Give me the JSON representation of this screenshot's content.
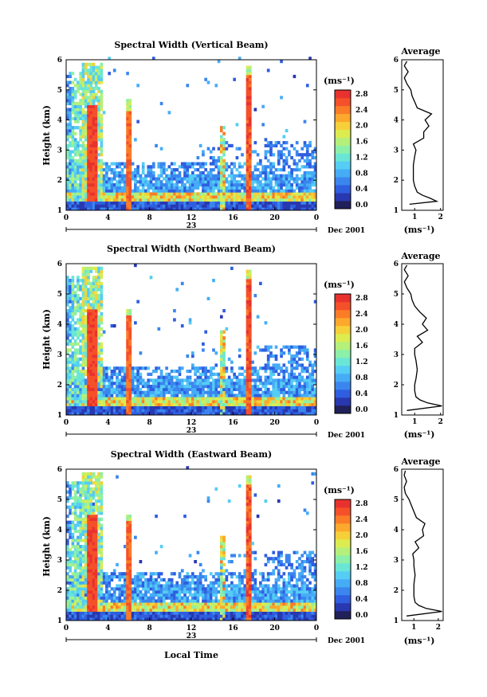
{
  "figure": {
    "colorbar_unit": "(ms⁻¹)",
    "colorbar_ticks": [
      "0.0",
      "0.4",
      "0.8",
      "1.2",
      "1.6",
      "2.0",
      "2.4",
      "2.8"
    ],
    "colorbar_levels": [
      0,
      0.2,
      0.4,
      0.6,
      0.8,
      1.0,
      1.2,
      1.4,
      1.6,
      1.8,
      2.0,
      2.2,
      2.4,
      2.6,
      2.8
    ],
    "colorbar_colors": [
      "#20205a",
      "#2838b0",
      "#2f5ee0",
      "#3a86ee",
      "#46acf6",
      "#55cdf4",
      "#6ae6d6",
      "#8cf0a8",
      "#b4f07a",
      "#dcec50",
      "#f6d038",
      "#fca82c",
      "#fb7c26",
      "#f4502a",
      "#e8322e"
    ],
    "time_ticks": [
      "0",
      "4",
      "8",
      "12",
      "16",
      "20",
      "0"
    ],
    "height_ticks": [
      "1",
      "2",
      "3",
      "4",
      "5",
      "6"
    ],
    "date_label": "23",
    "date_suffix": "Dec 2001",
    "average_title": "Average",
    "average_unit": "(ms⁻¹)",
    "ylabel": "Height (km)",
    "xlabel": "Local Time"
  },
  "chart_data": [
    {
      "type": "heatmap",
      "title": "Spectral Width (Vertical Beam)",
      "xlabel": "",
      "ylabel": "Height (km)",
      "xlim": [
        0,
        24
      ],
      "ylim": [
        1,
        6
      ],
      "zlabel": "(ms⁻¹)",
      "zlim": [
        0,
        2.9
      ],
      "profile": {
        "title": "Average",
        "xlabel": "(ms⁻¹)",
        "xticks": [
          1,
          2
        ],
        "xlim": [
          0.5,
          2.1
        ],
        "heights": [
          1.2,
          1.3,
          1.4,
          1.5,
          1.6,
          1.8,
          2.0,
          2.2,
          2.5,
          2.8,
          3.0,
          3.2,
          3.4,
          3.6,
          3.8,
          4.0,
          4.2,
          4.4,
          4.6,
          4.8,
          5.0,
          5.2,
          5.4,
          5.6,
          5.8,
          5.95
        ],
        "values": [
          0.8,
          1.85,
          1.6,
          1.3,
          1.1,
          1.0,
          0.95,
          0.95,
          0.95,
          1.0,
          1.05,
          0.95,
          1.35,
          1.35,
          1.55,
          1.4,
          1.65,
          1.1,
          1.0,
          0.9,
          0.85,
          0.7,
          0.6,
          0.75,
          0.6,
          0.7
        ]
      }
    },
    {
      "type": "heatmap",
      "title": "Spectral Width (Northward Beam)",
      "xlabel": "",
      "ylabel": "Height (km)",
      "xlim": [
        0,
        24
      ],
      "ylim": [
        1,
        6
      ],
      "zlabel": "(ms⁻¹)",
      "zlim": [
        0,
        2.9
      ],
      "profile": {
        "title": "Average",
        "xlabel": "(ms⁻¹)",
        "xticks": [
          1,
          2
        ],
        "xlim": [
          0.5,
          2.1
        ],
        "heights": [
          1.15,
          1.3,
          1.4,
          1.5,
          1.6,
          1.8,
          2.0,
          2.2,
          2.5,
          2.8,
          3.0,
          3.2,
          3.4,
          3.6,
          3.8,
          4.0,
          4.2,
          4.4,
          4.6,
          4.8,
          5.0,
          5.2,
          5.4,
          5.6,
          5.8,
          5.95
        ],
        "values": [
          0.7,
          2.05,
          1.5,
          1.2,
          1.05,
          1.0,
          1.0,
          1.05,
          1.1,
          1.05,
          1.0,
          1.0,
          1.3,
          1.1,
          1.5,
          1.3,
          1.45,
          1.2,
          1.0,
          0.9,
          0.85,
          0.7,
          0.6,
          0.75,
          0.6,
          0.7
        ]
      }
    },
    {
      "type": "heatmap",
      "title": "Spectral Width (Eastward Beam)",
      "xlabel": "Local Time",
      "ylabel": "Height (km)",
      "xlim": [
        0,
        24
      ],
      "ylim": [
        1,
        6
      ],
      "zlabel": "(ms⁻¹)",
      "zlim": [
        0,
        2.9
      ],
      "profile": {
        "title": "Average",
        "xlabel": "(ms⁻¹)",
        "xticks": [
          1,
          2
        ],
        "xlim": [
          0.5,
          2.2
        ],
        "heights": [
          1.15,
          1.3,
          1.4,
          1.5,
          1.6,
          1.8,
          2.0,
          2.2,
          2.5,
          2.8,
          3.0,
          3.2,
          3.4,
          3.6,
          3.8,
          4.0,
          4.2,
          4.4,
          4.6,
          4.8,
          5.0,
          5.2,
          5.4,
          5.6,
          5.8,
          5.95
        ],
        "values": [
          0.7,
          2.15,
          1.5,
          1.2,
          1.05,
          1.0,
          1.0,
          1.0,
          1.05,
          1.0,
          1.0,
          0.95,
          1.2,
          1.05,
          1.4,
          1.35,
          1.45,
          1.1,
          1.0,
          0.9,
          0.8,
          0.65,
          0.6,
          0.7,
          0.6,
          0.65
        ]
      }
    }
  ]
}
